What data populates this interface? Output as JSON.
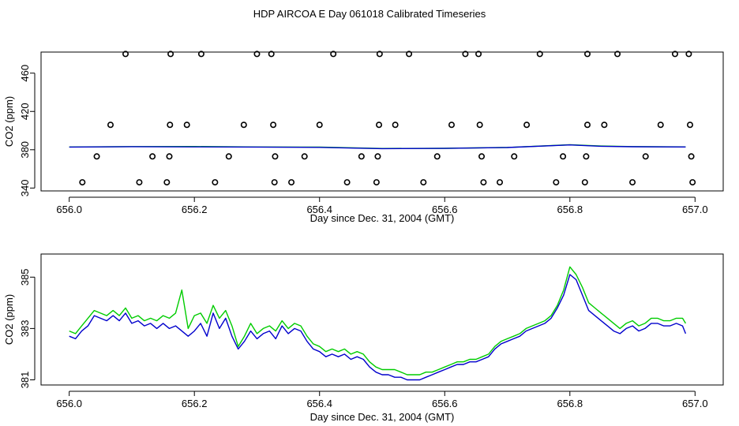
{
  "figure_title": "HDP AIRCOA E  Day 061018  Calibrated Timeseries",
  "colors": {
    "green": "#00cc00",
    "blue": "#0000cc",
    "axis": "#000000"
  },
  "chart_data": [
    {
      "type": "scatter",
      "title": "",
      "xlabel": "Day since Dec. 31, 2004 (GMT)",
      "ylabel": "CO2 (ppm)",
      "xlim": [
        655.955,
        657.045
      ],
      "ylim": [
        337,
        482
      ],
      "xticks": [
        656.0,
        656.2,
        656.4,
        656.6,
        656.8,
        657.0
      ],
      "xtick_labels": [
        "656.0",
        "656.2",
        "656.4",
        "656.6",
        "656.8",
        "657.0"
      ],
      "yticks": [
        340,
        380,
        420,
        460
      ],
      "ytick_labels": [
        "340",
        "380",
        "420",
        "460"
      ],
      "points_x": [
        656.09,
        656.162,
        656.211,
        656.3,
        656.323,
        656.422,
        656.496,
        656.543,
        656.633,
        656.654,
        656.752,
        656.828,
        656.876,
        656.968,
        656.99,
        656.066,
        656.161,
        656.188,
        656.279,
        656.326,
        656.4,
        656.495,
        656.521,
        656.611,
        656.656,
        656.731,
        656.828,
        656.855,
        656.945,
        656.992,
        656.044,
        656.133,
        656.16,
        656.255,
        656.329,
        656.376,
        656.467,
        656.493,
        656.588,
        656.659,
        656.711,
        656.789,
        656.826,
        656.921,
        656.994,
        656.021,
        656.112,
        656.156,
        656.233,
        656.328,
        656.355,
        656.444,
        656.491,
        656.566,
        656.662,
        656.688,
        656.778,
        656.824,
        656.9,
        656.996
      ],
      "points_y": [
        480,
        480,
        480,
        480,
        480,
        480,
        480,
        480,
        480,
        480,
        480,
        480,
        480,
        480,
        480,
        406,
        406,
        406,
        406,
        406,
        406,
        406,
        406,
        406,
        406,
        406,
        406,
        406,
        406,
        406,
        373,
        373,
        373,
        373,
        373,
        373,
        373,
        373,
        373,
        373,
        373,
        373,
        373,
        373,
        373,
        346,
        346,
        346,
        346,
        346,
        346,
        346,
        346,
        346,
        346,
        346,
        346,
        346,
        346,
        346
      ],
      "series": [
        {
          "name": "green",
          "color": "#00cc00",
          "x": [
            656.0,
            656.1,
            656.2,
            656.3,
            656.4,
            656.5,
            656.6,
            656.7,
            656.8,
            656.85,
            656.9,
            656.985
          ],
          "y": [
            382.9,
            383.3,
            383.4,
            382.9,
            382.7,
            381.3,
            381.5,
            382.4,
            385.2,
            383.9,
            383.3,
            383.0
          ]
        },
        {
          "name": "blue",
          "color": "#0000cc",
          "x": [
            656.0,
            656.1,
            656.2,
            656.3,
            656.4,
            656.5,
            656.6,
            656.7,
            656.8,
            656.85,
            656.9,
            656.985
          ],
          "y": [
            382.8,
            383.2,
            383.0,
            382.8,
            382.5,
            381.2,
            381.4,
            382.3,
            385.0,
            383.6,
            383.1,
            382.9
          ]
        }
      ]
    },
    {
      "type": "line",
      "title": "",
      "xlabel": "Day since Dec. 31, 2004 (GMT)",
      "ylabel": "CO2 (ppm)",
      "xlim": [
        655.955,
        657.045
      ],
      "ylim": [
        380.8,
        385.9
      ],
      "xticks": [
        656.0,
        656.2,
        656.4,
        656.6,
        656.8,
        657.0
      ],
      "xtick_labels": [
        "656.0",
        "656.2",
        "656.4",
        "656.6",
        "656.8",
        "657.0"
      ],
      "yticks": [
        381,
        383,
        385
      ],
      "ytick_labels": [
        "381",
        "383",
        "385"
      ],
      "series": [
        {
          "name": "green",
          "color": "#00cc00",
          "x": [
            656.0,
            656.01,
            656.02,
            656.03,
            656.04,
            656.05,
            656.06,
            656.07,
            656.08,
            656.09,
            656.1,
            656.11,
            656.12,
            656.13,
            656.14,
            656.15,
            656.16,
            656.17,
            656.18,
            656.19,
            656.2,
            656.21,
            656.22,
            656.23,
            656.24,
            656.25,
            656.26,
            656.27,
            656.28,
            656.29,
            656.3,
            656.31,
            656.32,
            656.33,
            656.34,
            656.35,
            656.36,
            656.37,
            656.38,
            656.39,
            656.4,
            656.41,
            656.42,
            656.43,
            656.44,
            656.45,
            656.46,
            656.47,
            656.48,
            656.49,
            656.5,
            656.51,
            656.52,
            656.53,
            656.54,
            656.55,
            656.56,
            656.57,
            656.58,
            656.59,
            656.6,
            656.61,
            656.62,
            656.63,
            656.64,
            656.65,
            656.66,
            656.67,
            656.68,
            656.69,
            656.7,
            656.71,
            656.72,
            656.73,
            656.74,
            656.75,
            656.76,
            656.77,
            656.78,
            656.79,
            656.8,
            656.81,
            656.82,
            656.83,
            656.84,
            656.85,
            656.86,
            656.87,
            656.88,
            656.89,
            656.9,
            656.91,
            656.92,
            656.93,
            656.94,
            656.95,
            656.96,
            656.97,
            656.98,
            656.985
          ],
          "y": [
            382.9,
            382.8,
            383.1,
            383.4,
            383.7,
            383.6,
            383.5,
            383.7,
            383.5,
            383.8,
            383.4,
            383.5,
            383.3,
            383.4,
            383.3,
            383.5,
            383.4,
            383.6,
            384.5,
            383.0,
            383.5,
            383.6,
            383.2,
            383.9,
            383.4,
            383.7,
            383.1,
            382.3,
            382.7,
            383.2,
            382.8,
            383.0,
            383.1,
            382.9,
            383.3,
            383.0,
            383.2,
            383.1,
            382.7,
            382.4,
            382.3,
            382.1,
            382.2,
            382.1,
            382.2,
            382.0,
            382.1,
            382.0,
            381.7,
            381.5,
            381.4,
            381.4,
            381.4,
            381.3,
            381.2,
            381.2,
            381.2,
            381.3,
            381.3,
            381.4,
            381.5,
            381.6,
            381.7,
            381.7,
            381.8,
            381.8,
            381.9,
            382.0,
            382.3,
            382.5,
            382.6,
            382.7,
            382.8,
            383.0,
            383.1,
            383.2,
            383.3,
            383.5,
            383.9,
            384.5,
            385.4,
            385.1,
            384.6,
            384.0,
            383.8,
            383.6,
            383.4,
            383.2,
            383.0,
            383.2,
            383.3,
            383.1,
            383.2,
            383.4,
            383.4,
            383.3,
            383.3,
            383.4,
            383.4,
            383.2
          ]
        },
        {
          "name": "blue",
          "color": "#0000cc",
          "x": [
            656.0,
            656.01,
            656.02,
            656.03,
            656.04,
            656.05,
            656.06,
            656.07,
            656.08,
            656.09,
            656.1,
            656.11,
            656.12,
            656.13,
            656.14,
            656.15,
            656.16,
            656.17,
            656.18,
            656.19,
            656.2,
            656.21,
            656.22,
            656.23,
            656.24,
            656.25,
            656.26,
            656.27,
            656.28,
            656.29,
            656.3,
            656.31,
            656.32,
            656.33,
            656.34,
            656.35,
            656.36,
            656.37,
            656.38,
            656.39,
            656.4,
            656.41,
            656.42,
            656.43,
            656.44,
            656.45,
            656.46,
            656.47,
            656.48,
            656.49,
            656.5,
            656.51,
            656.52,
            656.53,
            656.54,
            656.55,
            656.56,
            656.57,
            656.58,
            656.59,
            656.6,
            656.61,
            656.62,
            656.63,
            656.64,
            656.65,
            656.66,
            656.67,
            656.68,
            656.69,
            656.7,
            656.71,
            656.72,
            656.73,
            656.74,
            656.75,
            656.76,
            656.77,
            656.78,
            656.79,
            656.8,
            656.81,
            656.82,
            656.83,
            656.84,
            656.85,
            656.86,
            656.87,
            656.88,
            656.89,
            656.9,
            656.91,
            656.92,
            656.93,
            656.94,
            656.95,
            656.96,
            656.97,
            656.98,
            656.985
          ],
          "y": [
            382.7,
            382.6,
            382.9,
            383.1,
            383.5,
            383.4,
            383.3,
            383.5,
            383.3,
            383.6,
            383.2,
            383.3,
            383.1,
            383.2,
            383.0,
            383.2,
            383.0,
            383.1,
            382.9,
            382.7,
            382.9,
            383.2,
            382.7,
            383.6,
            383.0,
            383.4,
            382.7,
            382.2,
            382.5,
            382.9,
            382.6,
            382.8,
            382.9,
            382.6,
            383.1,
            382.8,
            383.0,
            382.9,
            382.5,
            382.2,
            382.1,
            381.9,
            382.0,
            381.9,
            382.0,
            381.8,
            381.9,
            381.8,
            381.5,
            381.3,
            381.2,
            381.2,
            381.1,
            381.1,
            381.0,
            381.0,
            381.0,
            381.1,
            381.2,
            381.3,
            381.4,
            381.5,
            381.6,
            381.6,
            381.7,
            381.7,
            381.8,
            381.9,
            382.2,
            382.4,
            382.5,
            382.6,
            382.7,
            382.9,
            383.0,
            383.1,
            383.2,
            383.4,
            383.8,
            384.3,
            385.1,
            384.9,
            384.3,
            383.7,
            383.5,
            383.3,
            383.1,
            382.9,
            382.8,
            383.0,
            383.1,
            382.9,
            383.0,
            383.2,
            383.2,
            383.1,
            383.1,
            383.2,
            383.1,
            382.8
          ]
        }
      ]
    }
  ]
}
